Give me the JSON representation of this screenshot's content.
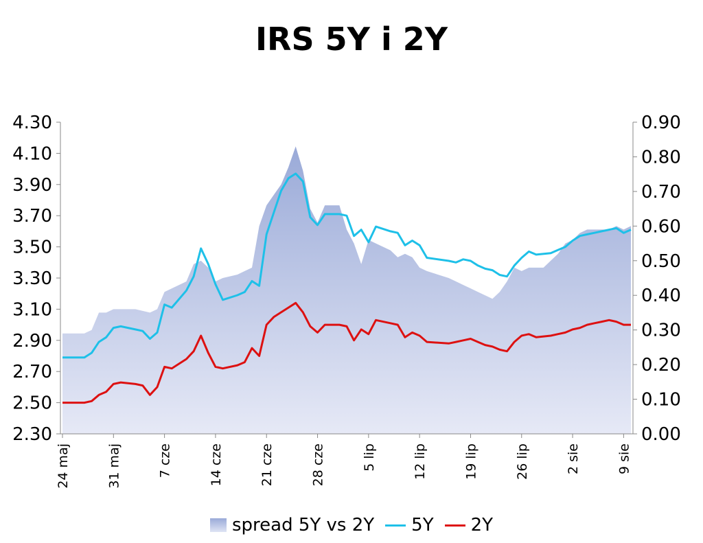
{
  "chart_data": {
    "type": "line",
    "title": "IRS 5Y i 2Y",
    "x_tick_labels": [
      "24 maj",
      "31 maj",
      "7 cze",
      "14 cze",
      "21 cze",
      "28 cze",
      "5 lip",
      "12 lip",
      "19 lip",
      "26 lip",
      "2 sie",
      "9 sie"
    ],
    "x_tick_positions": [
      0,
      7,
      14,
      21,
      28,
      35,
      42,
      49,
      56,
      63,
      70,
      77
    ],
    "x_range": [
      0,
      78
    ],
    "y_left": {
      "min": 2.3,
      "max": 4.3,
      "ticks": [
        "4.30",
        "4.10",
        "3.90",
        "3.70",
        "3.50",
        "3.30",
        "3.10",
        "2.90",
        "2.70",
        "2.50",
        "2.30"
      ]
    },
    "y_right": {
      "min": 0.0,
      "max": 0.9,
      "ticks": [
        "0.90",
        "0.80",
        "0.70",
        "0.60",
        "0.50",
        "0.40",
        "0.30",
        "0.20",
        "0.10",
        "0.00"
      ]
    },
    "grid": false,
    "legend_position": "bottom",
    "series": [
      {
        "name": "spread 5Y vs 2Y",
        "kind": "area",
        "axis": "right",
        "color": "#9aaad8",
        "points": [
          [
            0,
            0.29
          ],
          [
            3,
            0.29
          ],
          [
            4,
            0.3
          ],
          [
            5,
            0.35
          ],
          [
            6,
            0.35
          ],
          [
            7,
            0.36
          ],
          [
            8,
            0.36
          ],
          [
            10,
            0.36
          ],
          [
            12,
            0.35
          ],
          [
            13,
            0.36
          ],
          [
            14,
            0.41
          ],
          [
            17,
            0.44
          ],
          [
            18,
            0.49
          ],
          [
            19,
            0.5
          ],
          [
            20,
            0.48
          ],
          [
            21,
            0.44
          ],
          [
            22,
            0.45
          ],
          [
            24,
            0.46
          ],
          [
            25,
            0.47
          ],
          [
            26,
            0.48
          ],
          [
            27,
            0.6
          ],
          [
            28,
            0.66
          ],
          [
            29,
            0.69
          ],
          [
            30,
            0.72
          ],
          [
            31,
            0.77
          ],
          [
            32,
            0.83
          ],
          [
            33,
            0.76
          ],
          [
            34,
            0.65
          ],
          [
            35,
            0.61
          ],
          [
            36,
            0.66
          ],
          [
            38,
            0.66
          ],
          [
            39,
            0.59
          ],
          [
            40,
            0.55
          ],
          [
            41,
            0.49
          ],
          [
            42,
            0.56
          ],
          [
            43,
            0.55
          ],
          [
            44,
            0.54
          ],
          [
            45,
            0.53
          ],
          [
            46,
            0.51
          ],
          [
            47,
            0.52
          ],
          [
            48,
            0.51
          ],
          [
            49,
            0.48
          ],
          [
            50,
            0.47
          ],
          [
            53,
            0.45
          ],
          [
            54,
            0.44
          ],
          [
            55,
            0.43
          ],
          [
            56,
            0.42
          ],
          [
            57,
            0.41
          ],
          [
            58,
            0.4
          ],
          [
            59,
            0.39
          ],
          [
            60,
            0.41
          ],
          [
            61,
            0.44
          ],
          [
            62,
            0.48
          ],
          [
            63,
            0.47
          ],
          [
            64,
            0.48
          ],
          [
            66,
            0.48
          ],
          [
            67,
            0.5
          ],
          [
            68,
            0.52
          ],
          [
            69,
            0.55
          ],
          [
            70,
            0.56
          ],
          [
            71,
            0.58
          ],
          [
            72,
            0.59
          ],
          [
            73,
            0.59
          ],
          [
            75,
            0.59
          ],
          [
            76,
            0.6
          ],
          [
            77,
            0.59
          ],
          [
            78,
            0.6
          ]
        ]
      },
      {
        "name": "5Y",
        "kind": "line",
        "axis": "left",
        "color": "#1ec0e8",
        "points": [
          [
            0,
            2.79
          ],
          [
            3,
            2.79
          ],
          [
            4,
            2.82
          ],
          [
            5,
            2.89
          ],
          [
            6,
            2.92
          ],
          [
            7,
            2.98
          ],
          [
            8,
            2.99
          ],
          [
            10,
            2.97
          ],
          [
            11,
            2.96
          ],
          [
            12,
            2.91
          ],
          [
            13,
            2.95
          ],
          [
            14,
            3.13
          ],
          [
            15,
            3.11
          ],
          [
            17,
            3.22
          ],
          [
            18,
            3.31
          ],
          [
            19,
            3.49
          ],
          [
            20,
            3.39
          ],
          [
            21,
            3.26
          ],
          [
            22,
            3.16
          ],
          [
            24,
            3.19
          ],
          [
            25,
            3.21
          ],
          [
            26,
            3.28
          ],
          [
            27,
            3.25
          ],
          [
            28,
            3.58
          ],
          [
            29,
            3.72
          ],
          [
            30,
            3.86
          ],
          [
            31,
            3.94
          ],
          [
            32,
            3.97
          ],
          [
            33,
            3.92
          ],
          [
            34,
            3.69
          ],
          [
            35,
            3.64
          ],
          [
            36,
            3.71
          ],
          [
            38,
            3.71
          ],
          [
            39,
            3.7
          ],
          [
            40,
            3.57
          ],
          [
            41,
            3.61
          ],
          [
            42,
            3.53
          ],
          [
            43,
            3.63
          ],
          [
            45,
            3.6
          ],
          [
            46,
            3.59
          ],
          [
            47,
            3.51
          ],
          [
            48,
            3.54
          ],
          [
            49,
            3.51
          ],
          [
            50,
            3.43
          ],
          [
            53,
            3.41
          ],
          [
            54,
            3.4
          ],
          [
            55,
            3.42
          ],
          [
            56,
            3.41
          ],
          [
            57,
            3.38
          ],
          [
            58,
            3.36
          ],
          [
            59,
            3.35
          ],
          [
            60,
            3.32
          ],
          [
            61,
            3.31
          ],
          [
            62,
            3.38
          ],
          [
            63,
            3.43
          ],
          [
            64,
            3.47
          ],
          [
            65,
            3.45
          ],
          [
            67,
            3.46
          ],
          [
            68,
            3.48
          ],
          [
            69,
            3.5
          ],
          [
            70,
            3.54
          ],
          [
            71,
            3.57
          ],
          [
            72,
            3.58
          ],
          [
            73,
            3.59
          ],
          [
            74,
            3.6
          ],
          [
            75,
            3.61
          ],
          [
            76,
            3.62
          ],
          [
            77,
            3.59
          ],
          [
            78,
            3.61
          ]
        ]
      },
      {
        "name": "2Y",
        "kind": "line",
        "axis": "left",
        "color": "#dd1111",
        "points": [
          [
            0,
            2.5
          ],
          [
            3,
            2.5
          ],
          [
            4,
            2.51
          ],
          [
            5,
            2.55
          ],
          [
            6,
            2.57
          ],
          [
            7,
            2.62
          ],
          [
            8,
            2.63
          ],
          [
            10,
            2.62
          ],
          [
            11,
            2.61
          ],
          [
            12,
            2.55
          ],
          [
            13,
            2.6
          ],
          [
            14,
            2.73
          ],
          [
            15,
            2.72
          ],
          [
            17,
            2.78
          ],
          [
            18,
            2.83
          ],
          [
            19,
            2.93
          ],
          [
            20,
            2.82
          ],
          [
            21,
            2.73
          ],
          [
            22,
            2.72
          ],
          [
            24,
            2.74
          ],
          [
            25,
            2.76
          ],
          [
            26,
            2.85
          ],
          [
            27,
            2.8
          ],
          [
            28,
            3.0
          ],
          [
            29,
            3.05
          ],
          [
            30,
            3.08
          ],
          [
            31,
            3.11
          ],
          [
            32,
            3.14
          ],
          [
            33,
            3.08
          ],
          [
            34,
            2.99
          ],
          [
            35,
            2.95
          ],
          [
            36,
            3.0
          ],
          [
            38,
            3.0
          ],
          [
            39,
            2.99
          ],
          [
            40,
            2.9
          ],
          [
            41,
            2.97
          ],
          [
            42,
            2.94
          ],
          [
            43,
            3.03
          ],
          [
            45,
            3.01
          ],
          [
            46,
            3.0
          ],
          [
            47,
            2.92
          ],
          [
            48,
            2.95
          ],
          [
            49,
            2.93
          ],
          [
            50,
            2.89
          ],
          [
            53,
            2.88
          ],
          [
            54,
            2.89
          ],
          [
            55,
            2.9
          ],
          [
            56,
            2.91
          ],
          [
            57,
            2.89
          ],
          [
            58,
            2.87
          ],
          [
            59,
            2.86
          ],
          [
            60,
            2.84
          ],
          [
            61,
            2.83
          ],
          [
            62,
            2.89
          ],
          [
            63,
            2.93
          ],
          [
            64,
            2.94
          ],
          [
            65,
            2.92
          ],
          [
            67,
            2.93
          ],
          [
            68,
            2.94
          ],
          [
            69,
            2.95
          ],
          [
            70,
            2.97
          ],
          [
            71,
            2.98
          ],
          [
            72,
            3.0
          ],
          [
            73,
            3.01
          ],
          [
            74,
            3.02
          ],
          [
            75,
            3.03
          ],
          [
            76,
            3.02
          ],
          [
            77,
            3.0
          ],
          [
            78,
            3.0
          ]
        ]
      }
    ]
  }
}
